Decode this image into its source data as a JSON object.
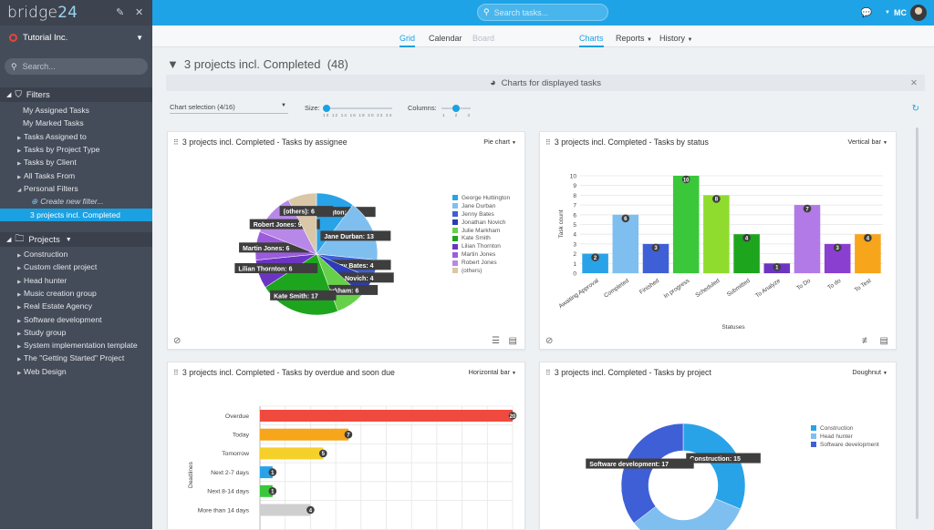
{
  "app": {
    "logo_main": "bridge",
    "logo_num": "24"
  },
  "sidebar": {
    "workspace": "Tutorial Inc.",
    "search_placeholder": "Search...",
    "filters_label": "Filters",
    "filter_items": [
      {
        "label": "My Assigned Tasks",
        "arrow": false
      },
      {
        "label": "My Marked Tasks",
        "arrow": false
      },
      {
        "label": "Tasks Assigned to",
        "arrow": true
      },
      {
        "label": "Tasks by Project Type",
        "arrow": true
      },
      {
        "label": "Tasks by Client",
        "arrow": true
      },
      {
        "label": "All Tasks From",
        "arrow": true
      },
      {
        "label": "Personal Filters",
        "arrow": true,
        "open": true
      }
    ],
    "new_filter": "Create new filter...",
    "active_filter": "3 projects incl. Completed",
    "projects_label": "Projects",
    "projects": [
      "Construction",
      "Custom client project",
      "Head hunter",
      "Music creation group",
      "Real Estate Agency",
      "Software development",
      "Study group",
      "System implementation template",
      "The \"Getting Started\" Project",
      "Web Design"
    ]
  },
  "topbar": {
    "search_placeholder": "Search tasks...",
    "user": "MC"
  },
  "views": {
    "grid": "Grid",
    "calendar": "Calendar",
    "board": "Board",
    "charts": "Charts",
    "reports": "Reports",
    "history": "History"
  },
  "page": {
    "title": "3 projects incl. Completed",
    "count": "(48)",
    "charts_bar": "Charts for displayed tasks"
  },
  "controls": {
    "chart_selection": "Chart selection (4/16)",
    "size_label": "Size:",
    "size_ticks": "10 12 14 16 18 20 22 24",
    "columns_label": "Columns:",
    "col_ticks": "1 2 3"
  },
  "panels": {
    "assignee": {
      "title": "3 projects incl. Completed - Tasks by assignee",
      "type": "Pie chart"
    },
    "status": {
      "title": "3 projects incl. Completed - Tasks by status",
      "type": "Vertical bar"
    },
    "overdue": {
      "title": "3 projects incl. Completed - Tasks by overdue and soon due",
      "type": "Horizontal bar"
    },
    "project": {
      "title": "3 projects incl. Completed - Tasks by project",
      "type": "Doughnut"
    }
  },
  "chart_data": [
    {
      "type": "pie",
      "series": [
        {
          "values": [
            8,
            13,
            4,
            4,
            6,
            17,
            6,
            6,
            9,
            6
          ]
        }
      ],
      "categories": [
        "George Huttington",
        "Jane Durban",
        "Jenny Bates",
        "Jonathan Novich",
        "Julie Markham",
        "Kate Smith",
        "Lilian Thornton",
        "Martin Jones",
        "Robert Jones",
        "(others)"
      ],
      "colors": [
        "#29a3e8",
        "#7fbff0",
        "#3f5fd6",
        "#2c3bb8",
        "#67d04b",
        "#1ea51e",
        "#6b35c2",
        "#9a5cdc",
        "#b888e8",
        "#d9c7a7"
      ],
      "legend": "right"
    },
    {
      "type": "bar",
      "categories": [
        "Awaiting Approval",
        "Completed",
        "Finished",
        "In progress",
        "Scheduled",
        "Submitted",
        "To Analyze",
        "To Do",
        "To do",
        "To Test"
      ],
      "values": [
        2,
        6,
        3,
        10,
        8,
        4,
        1,
        7,
        3,
        4
      ],
      "colors": [
        "#29a3e8",
        "#7fbff0",
        "#3f5fd6",
        "#3ac73a",
        "#8fdc2e",
        "#1ea51e",
        "#6b35c2",
        "#b27ae6",
        "#8a3fd1",
        "#f7a51a"
      ],
      "ylabel": "Task count",
      "xlabel": "Statuses",
      "ylim": [
        0,
        10
      ],
      "grid": true
    },
    {
      "type": "bar",
      "orientation": "horizontal",
      "categories": [
        "Overdue",
        "Today",
        "Tomorrow",
        "Next 2-7 days",
        "Next 8-14 days",
        "More than 14 days"
      ],
      "values": [
        20,
        7,
        5,
        1,
        1,
        4
      ],
      "colors": [
        "#f04a3e",
        "#f7a51a",
        "#f5d02a",
        "#29a3e8",
        "#3ac73a",
        "#cfcfcf"
      ],
      "ylabel": "Deadlines",
      "xlim": [
        0,
        20
      ],
      "grid": true
    },
    {
      "type": "doughnut",
      "categories": [
        "Construction",
        "Head hunter",
        "Software development"
      ],
      "values": [
        15,
        16,
        17
      ],
      "colors": [
        "#29a3e8",
        "#7fbff0",
        "#3f5fd6"
      ],
      "legend": "top-right"
    }
  ]
}
